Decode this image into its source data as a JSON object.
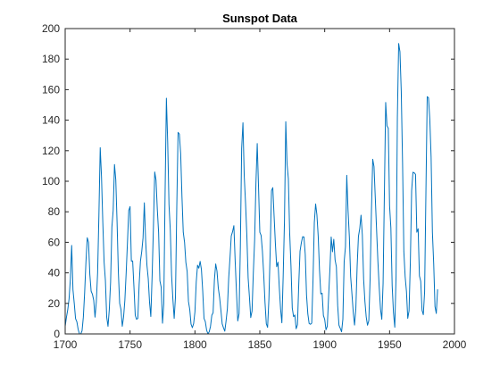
{
  "chart_data": {
    "type": "line",
    "title": "Sunspot Data",
    "xlabel": "",
    "ylabel": "",
    "xlim": [
      1700,
      2000
    ],
    "ylim": [
      0,
      200
    ],
    "grid": false,
    "legend": "none",
    "line_color": "#0072BD",
    "x_ticks": [
      1700,
      1750,
      1800,
      1850,
      1900,
      1950,
      2000
    ],
    "y_ticks": [
      0,
      20,
      40,
      60,
      80,
      100,
      120,
      140,
      160,
      180,
      200
    ],
    "x_tick_labels": [
      "1700",
      "1750",
      "1800",
      "1850",
      "1900",
      "1950",
      "2000"
    ],
    "y_tick_labels": [
      "0",
      "20",
      "40",
      "60",
      "80",
      "100",
      "120",
      "140",
      "160",
      "180",
      "200"
    ],
    "series": [
      {
        "x": [
          1700,
          1701,
          1702,
          1703,
          1704,
          1705,
          1706,
          1707,
          1708,
          1709,
          1710,
          1711,
          1712,
          1713,
          1714,
          1715,
          1716,
          1717,
          1718,
          1719,
          1720,
          1721,
          1722,
          1723,
          1724,
          1725,
          1726,
          1727,
          1728,
          1729,
          1730,
          1731,
          1732,
          1733,
          1734,
          1735,
          1736,
          1737,
          1738,
          1739,
          1740,
          1741,
          1742,
          1743,
          1744,
          1745,
          1746,
          1747,
          1748,
          1749,
          1750,
          1751,
          1752,
          1753,
          1754,
          1755,
          1756,
          1757,
          1758,
          1759,
          1760,
          1761,
          1762,
          1763,
          1764,
          1765,
          1766,
          1767,
          1768,
          1769,
          1770,
          1771,
          1772,
          1773,
          1774,
          1775,
          1776,
          1777,
          1778,
          1779,
          1780,
          1781,
          1782,
          1783,
          1784,
          1785,
          1786,
          1787,
          1788,
          1789,
          1790,
          1791,
          1792,
          1793,
          1794,
          1795,
          1796,
          1797,
          1798,
          1799,
          1800,
          1801,
          1802,
          1803,
          1804,
          1805,
          1806,
          1807,
          1808,
          1809,
          1810,
          1811,
          1812,
          1813,
          1814,
          1815,
          1816,
          1817,
          1818,
          1819,
          1820,
          1821,
          1822,
          1823,
          1824,
          1825,
          1826,
          1827,
          1828,
          1829,
          1830,
          1831,
          1832,
          1833,
          1834,
          1835,
          1836,
          1837,
          1838,
          1839,
          1840,
          1841,
          1842,
          1843,
          1844,
          1845,
          1846,
          1847,
          1848,
          1849,
          1850,
          1851,
          1852,
          1853,
          1854,
          1855,
          1856,
          1857,
          1858,
          1859,
          1860,
          1861,
          1862,
          1863,
          1864,
          1865,
          1866,
          1867,
          1868,
          1869,
          1870,
          1871,
          1872,
          1873,
          1874,
          1875,
          1876,
          1877,
          1878,
          1879,
          1880,
          1881,
          1882,
          1883,
          1884,
          1885,
          1886,
          1887,
          1888,
          1889,
          1890,
          1891,
          1892,
          1893,
          1894,
          1895,
          1896,
          1897,
          1898,
          1899,
          1900,
          1901,
          1902,
          1903,
          1904,
          1905,
          1906,
          1907,
          1908,
          1909,
          1910,
          1911,
          1912,
          1913,
          1914,
          1915,
          1916,
          1917,
          1918,
          1919,
          1920,
          1921,
          1922,
          1923,
          1924,
          1925,
          1926,
          1927,
          1928,
          1929,
          1930,
          1931,
          1932,
          1933,
          1934,
          1935,
          1936,
          1937,
          1938,
          1939,
          1940,
          1941,
          1942,
          1943,
          1944,
          1945,
          1946,
          1947,
          1948,
          1949,
          1950,
          1951,
          1952,
          1953,
          1954,
          1955,
          1956,
          1957,
          1958,
          1959,
          1960,
          1961,
          1962,
          1963,
          1964,
          1965,
          1966,
          1967,
          1968,
          1969,
          1970,
          1971,
          1972,
          1973,
          1974,
          1975,
          1976,
          1977,
          1978,
          1979,
          1980,
          1981,
          1982,
          1983,
          1984,
          1985,
          1986,
          1987
        ],
        "values": [
          5,
          11,
          16,
          23,
          36,
          58,
          29,
          20,
          10,
          8,
          3,
          0,
          0,
          2,
          11,
          27,
          47,
          63,
          60,
          39,
          28,
          26,
          22,
          11,
          21,
          40,
          78,
          122,
          103,
          73,
          47,
          35,
          11,
          5,
          16,
          34,
          70,
          81,
          111,
          101,
          73,
          40,
          20,
          16,
          5,
          11,
          22,
          40,
          60,
          80.9,
          83.4,
          47.7,
          47.8,
          30.7,
          12.2,
          9.6,
          10.2,
          32.4,
          47.6,
          54,
          62.9,
          85.9,
          61.2,
          45.1,
          36.4,
          20.9,
          11.4,
          37.8,
          69.8,
          106.1,
          100.8,
          81.6,
          66.5,
          34.8,
          30.6,
          7,
          19.8,
          92.5,
          154.4,
          125.9,
          84.8,
          68.1,
          38.5,
          22.8,
          10.2,
          24.1,
          82.9,
          132,
          130.9,
          118.1,
          89.9,
          66.6,
          60,
          46.9,
          41,
          21.3,
          16,
          6.4,
          4.1,
          6.8,
          14.5,
          34,
          45,
          43.1,
          47.5,
          42.2,
          28.1,
          10.1,
          8.1,
          2.5,
          0,
          1.4,
          5,
          12.2,
          13.9,
          35.4,
          45.8,
          41.1,
          30.1,
          23.9,
          15.6,
          6.6,
          4,
          1.8,
          8.5,
          16.6,
          36.3,
          49.6,
          64.2,
          67,
          70.9,
          47.8,
          27.5,
          8.5,
          13.2,
          56.9,
          121.5,
          138.3,
          103.2,
          85.7,
          64.6,
          36.7,
          24.2,
          10.7,
          15,
          40.1,
          61.5,
          98.5,
          124.7,
          96.3,
          66.6,
          64.5,
          54.1,
          39,
          20.6,
          6.7,
          4.3,
          22.7,
          54.8,
          93.8,
          95.8,
          77.2,
          59.1,
          44,
          47,
          30.5,
          16.3,
          7.3,
          37.6,
          74,
          139,
          111.2,
          101.6,
          66.2,
          44.7,
          17,
          11.3,
          12.4,
          3.4,
          6,
          32.3,
          54.3,
          59.7,
          63.7,
          63.5,
          52.2,
          25.4,
          13.1,
          6.8,
          6.3,
          7.1,
          35.6,
          73,
          85.1,
          78,
          64,
          41.8,
          26.2,
          26.7,
          12.1,
          9.5,
          2.7,
          5,
          24.4,
          42,
          63.5,
          53.8,
          62,
          48.5,
          43.9,
          18.6,
          5.7,
          3.6,
          1.4,
          9.6,
          47.4,
          57.1,
          103.9,
          80.6,
          63.6,
          37.6,
          26.1,
          14.2,
          5.8,
          16.7,
          44.3,
          63.9,
          69,
          77.8,
          64.9,
          35.7,
          21.2,
          11.1,
          5.7,
          8.7,
          36.1,
          79.7,
          114.4,
          109.6,
          88.8,
          67.8,
          47.5,
          30.6,
          16.3,
          9.6,
          33.2,
          92.6,
          151.6,
          136.3,
          134.7,
          83.9,
          69.4,
          31.5,
          13.9,
          4.4,
          38,
          141.7,
          190.2,
          184.8,
          159,
          112.3,
          53.9,
          37.5,
          27.9,
          10.2,
          15.1,
          47,
          93.8,
          105.9,
          105.5,
          104.5,
          66.6,
          68.9,
          38,
          34.5,
          15.5,
          12.6,
          27.5,
          92.5,
          155.4,
          154.6,
          140.5,
          115.9,
          66.6,
          45.9,
          17.9,
          13.4,
          29.2
        ]
      }
    ]
  }
}
